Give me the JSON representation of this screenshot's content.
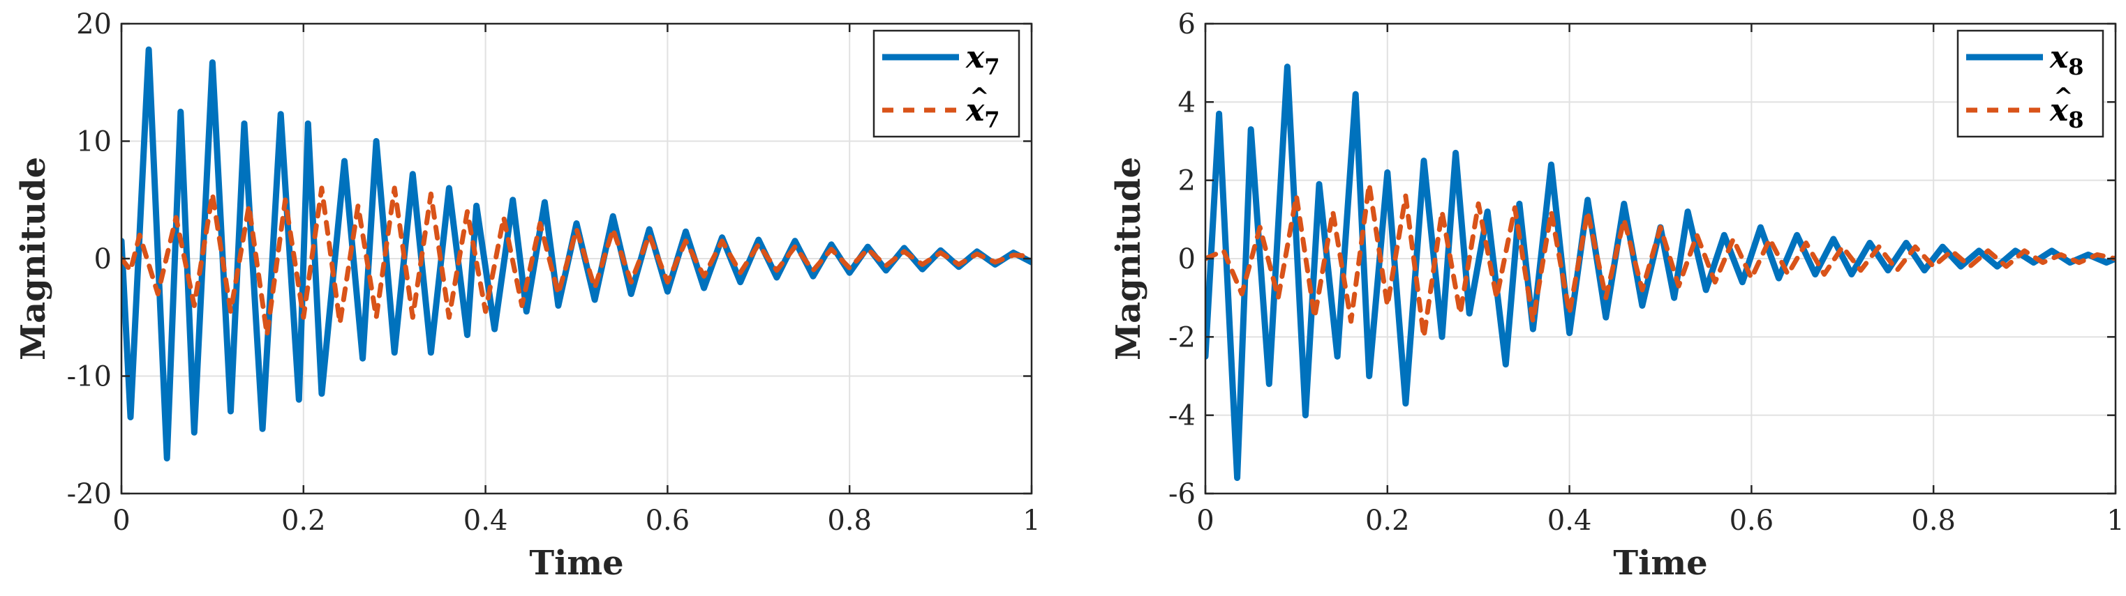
{
  "colors": {
    "estimated": "#0072BD",
    "observer": "#D95319",
    "grid": "#e1e1e1",
    "axis": "#262626",
    "background": "#ffffff"
  },
  "chart_data": [
    {
      "id": "left",
      "type": "line",
      "title": "",
      "xlabel": "Time",
      "ylabel": "Magnitude",
      "xlim": [
        0,
        1
      ],
      "ylim": [
        -20,
        20
      ],
      "xticks": [
        0,
        0.2,
        0.4,
        0.6,
        0.8,
        1
      ],
      "xtick_labels": [
        "0",
        "0.2",
        "0.4",
        "0.6",
        "0.8",
        "1"
      ],
      "yticks": [
        -20,
        -10,
        0,
        10,
        20
      ],
      "ytick_labels": [
        "-20",
        "-10",
        "0",
        "10",
        "20"
      ],
      "grid": true,
      "legend_position": "top-right",
      "series": [
        {
          "name": "x7",
          "label_base": "x",
          "label_sub": "7",
          "hat": false,
          "style": "solid",
          "color": "#0072BD",
          "x": [
            0,
            0.01,
            0.03,
            0.05,
            0.065,
            0.08,
            0.1,
            0.12,
            0.135,
            0.155,
            0.175,
            0.195,
            0.205,
            0.22,
            0.245,
            0.265,
            0.28,
            0.3,
            0.32,
            0.34,
            0.36,
            0.38,
            0.39,
            0.41,
            0.43,
            0.445,
            0.465,
            0.48,
            0.5,
            0.52,
            0.54,
            0.56,
            0.58,
            0.6,
            0.62,
            0.64,
            0.66,
            0.68,
            0.7,
            0.72,
            0.74,
            0.76,
            0.78,
            0.8,
            0.82,
            0.84,
            0.86,
            0.88,
            0.9,
            0.92,
            0.94,
            0.96,
            0.98,
            1.0
          ],
          "y": [
            1.5,
            -13.5,
            17.8,
            -17.0,
            12.5,
            -14.8,
            16.7,
            -13.0,
            11.5,
            -14.5,
            12.3,
            -12.0,
            11.5,
            -11.5,
            8.3,
            -8.5,
            10.0,
            -8.0,
            7.2,
            -8.0,
            6.0,
            -6.5,
            4.5,
            -6.0,
            5.0,
            -4.5,
            4.8,
            -4.0,
            3.0,
            -3.5,
            3.6,
            -3.0,
            2.5,
            -2.8,
            2.3,
            -2.5,
            1.8,
            -2.0,
            1.6,
            -1.6,
            1.5,
            -1.5,
            1.2,
            -1.2,
            1.0,
            -1.0,
            0.9,
            -0.9,
            0.7,
            -0.7,
            0.6,
            -0.5,
            0.5,
            -0.3
          ]
        },
        {
          "name": "x7 hat",
          "label_base": "x",
          "label_sub": "7",
          "hat": true,
          "style": "dashed",
          "color": "#D95319",
          "x": [
            0,
            0.01,
            0.02,
            0.04,
            0.06,
            0.08,
            0.1,
            0.12,
            0.14,
            0.16,
            0.18,
            0.2,
            0.22,
            0.24,
            0.26,
            0.28,
            0.3,
            0.32,
            0.34,
            0.36,
            0.38,
            0.4,
            0.42,
            0.44,
            0.46,
            0.48,
            0.5,
            0.52,
            0.54,
            0.56,
            0.58,
            0.6,
            0.62,
            0.64,
            0.66,
            0.68,
            0.7,
            0.72,
            0.74,
            0.76,
            0.78,
            0.8,
            0.82,
            0.84,
            0.86,
            0.88,
            0.9,
            0.92,
            0.94,
            0.96,
            0.98,
            1.0
          ],
          "y": [
            0,
            -1.0,
            2.0,
            -3.0,
            3.5,
            -4.0,
            5.5,
            -4.5,
            4.5,
            -6.5,
            5.0,
            -5.0,
            6.0,
            -5.5,
            4.5,
            -5.0,
            6.0,
            -5.0,
            5.5,
            -5.0,
            4.0,
            -4.5,
            3.5,
            -4.0,
            3.0,
            -3.0,
            2.5,
            -2.5,
            2.5,
            -2.0,
            2.0,
            -2.0,
            1.5,
            -1.5,
            1.5,
            -1.2,
            1.2,
            -1.0,
            1.0,
            -1.0,
            0.8,
            -0.8,
            0.8,
            -0.6,
            0.6,
            -0.5,
            0.5,
            -0.5,
            0.4,
            -0.3,
            0.3,
            0.2
          ]
        }
      ]
    },
    {
      "id": "right",
      "type": "line",
      "title": "",
      "xlabel": "Time",
      "ylabel": "Magnitude",
      "xlim": [
        0,
        1
      ],
      "ylim": [
        -6,
        6
      ],
      "xticks": [
        0,
        0.2,
        0.4,
        0.6,
        0.8,
        1
      ],
      "xtick_labels": [
        "0",
        "0.2",
        "0.4",
        "0.6",
        "0.8",
        "1"
      ],
      "yticks": [
        -6,
        -4,
        -2,
        0,
        2,
        4,
        6
      ],
      "ytick_labels": [
        "-6",
        "-4",
        "-2",
        "0",
        "2",
        "4",
        "6"
      ],
      "grid": true,
      "legend_position": "top-right",
      "series": [
        {
          "name": "x8",
          "label_base": "x",
          "label_sub": "8",
          "hat": false,
          "style": "solid",
          "color": "#0072BD",
          "x": [
            0,
            0.015,
            0.035,
            0.05,
            0.07,
            0.09,
            0.11,
            0.125,
            0.145,
            0.165,
            0.18,
            0.2,
            0.22,
            0.24,
            0.26,
            0.275,
            0.29,
            0.31,
            0.33,
            0.345,
            0.36,
            0.38,
            0.4,
            0.42,
            0.44,
            0.46,
            0.48,
            0.5,
            0.515,
            0.53,
            0.55,
            0.57,
            0.59,
            0.61,
            0.63,
            0.65,
            0.67,
            0.69,
            0.71,
            0.73,
            0.75,
            0.77,
            0.79,
            0.81,
            0.83,
            0.85,
            0.87,
            0.89,
            0.91,
            0.93,
            0.95,
            0.97,
            0.99,
            1.0
          ],
          "y": [
            -2.5,
            3.7,
            -5.6,
            3.3,
            -3.2,
            4.9,
            -4.0,
            1.9,
            -2.5,
            4.2,
            -3.0,
            2.2,
            -3.7,
            2.5,
            -2.0,
            2.7,
            -1.4,
            1.2,
            -2.7,
            1.4,
            -1.8,
            2.4,
            -1.9,
            1.5,
            -1.5,
            1.4,
            -1.2,
            0.8,
            -1.0,
            1.2,
            -0.8,
            0.6,
            -0.6,
            0.8,
            -0.5,
            0.6,
            -0.4,
            0.5,
            -0.4,
            0.4,
            -0.3,
            0.4,
            -0.3,
            0.3,
            -0.2,
            0.2,
            -0.2,
            0.2,
            -0.1,
            0.2,
            -0.1,
            0.1,
            -0.1,
            0.0
          ]
        },
        {
          "name": "x8 hat",
          "label_base": "x",
          "label_sub": "8",
          "hat": true,
          "style": "dashed",
          "color": "#D95319",
          "x": [
            0,
            0.02,
            0.04,
            0.06,
            0.08,
            0.1,
            0.12,
            0.14,
            0.16,
            0.18,
            0.2,
            0.22,
            0.24,
            0.26,
            0.28,
            0.3,
            0.32,
            0.34,
            0.36,
            0.38,
            0.4,
            0.42,
            0.44,
            0.46,
            0.48,
            0.5,
            0.52,
            0.54,
            0.56,
            0.58,
            0.6,
            0.62,
            0.64,
            0.66,
            0.68,
            0.7,
            0.72,
            0.74,
            0.76,
            0.78,
            0.8,
            0.82,
            0.84,
            0.86,
            0.88,
            0.9,
            0.92,
            0.94,
            0.96,
            0.98,
            1.0
          ],
          "y": [
            0,
            0.2,
            -0.9,
            0.8,
            -1.0,
            1.6,
            -1.5,
            1.2,
            -1.6,
            1.9,
            -1.2,
            1.6,
            -2.0,
            1.2,
            -1.4,
            1.4,
            -1.0,
            1.3,
            -1.6,
            1.2,
            -1.4,
            1.2,
            -1.0,
            1.0,
            -0.8,
            0.8,
            -0.7,
            0.6,
            -0.6,
            0.5,
            -0.5,
            0.5,
            -0.4,
            0.4,
            -0.4,
            0.3,
            -0.3,
            0.3,
            -0.3,
            0.3,
            -0.2,
            0.2,
            -0.2,
            0.2,
            -0.2,
            0.2,
            -0.1,
            0.1,
            -0.1,
            0.1,
            0.0
          ]
        }
      ]
    }
  ]
}
